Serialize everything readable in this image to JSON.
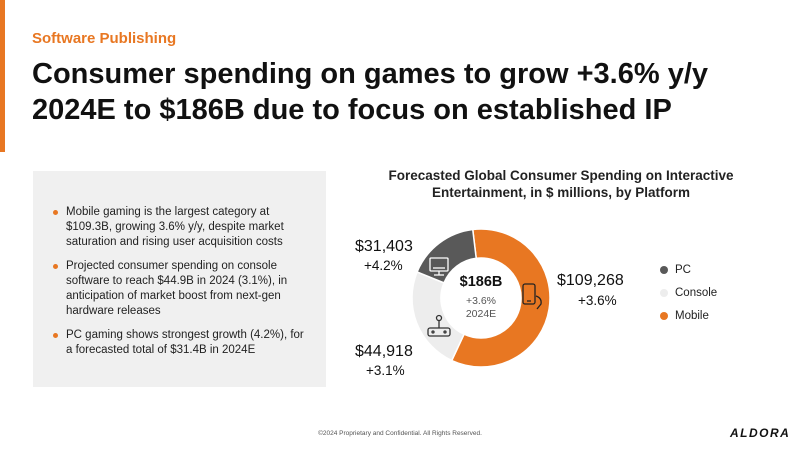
{
  "header": {
    "section": "Software Publishing",
    "title": "Consumer spending on games to grow +3.6% y/y 2024E to $186B due to focus on established IP"
  },
  "bullets": [
    "Mobile gaming is the largest category at $109.3B, growing 3.6% y/y, despite market saturation and rising user acquisition costs",
    "Projected consumer spending on console software to reach $44.9B in 2024 (3.1%), in anticipation of market boost from next-gen hardware releases",
    "PC gaming shows strongest growth (4.2%), for a forecasted total of $31.4B in 2024E"
  ],
  "chart_data": {
    "type": "pie",
    "title": "Forecasted Global Consumer Spending on Interactive Entertainment, in $ millions, by Platform",
    "center": {
      "total": "$186B",
      "growth": "+3.6%",
      "year": "2024E"
    },
    "categories": [
      "PC",
      "Console",
      "Mobile"
    ],
    "values": [
      31403,
      44918,
      109268
    ],
    "value_labels": [
      "$31,403",
      "$44,918",
      "$109,268"
    ],
    "growth_labels": [
      "+4.2%",
      "+3.1%",
      "+3.6%"
    ],
    "colors": [
      "#595959",
      "#EDEDED",
      "#E87722"
    ],
    "icons": [
      "pc-monitor-icon",
      "console-joystick-icon",
      "mobile-phone-icon"
    ],
    "legend": {
      "position": "right"
    }
  },
  "footer": "©2024 Proprietary and Confidential. All Rights Reserved.",
  "logo": "ALDORA"
}
